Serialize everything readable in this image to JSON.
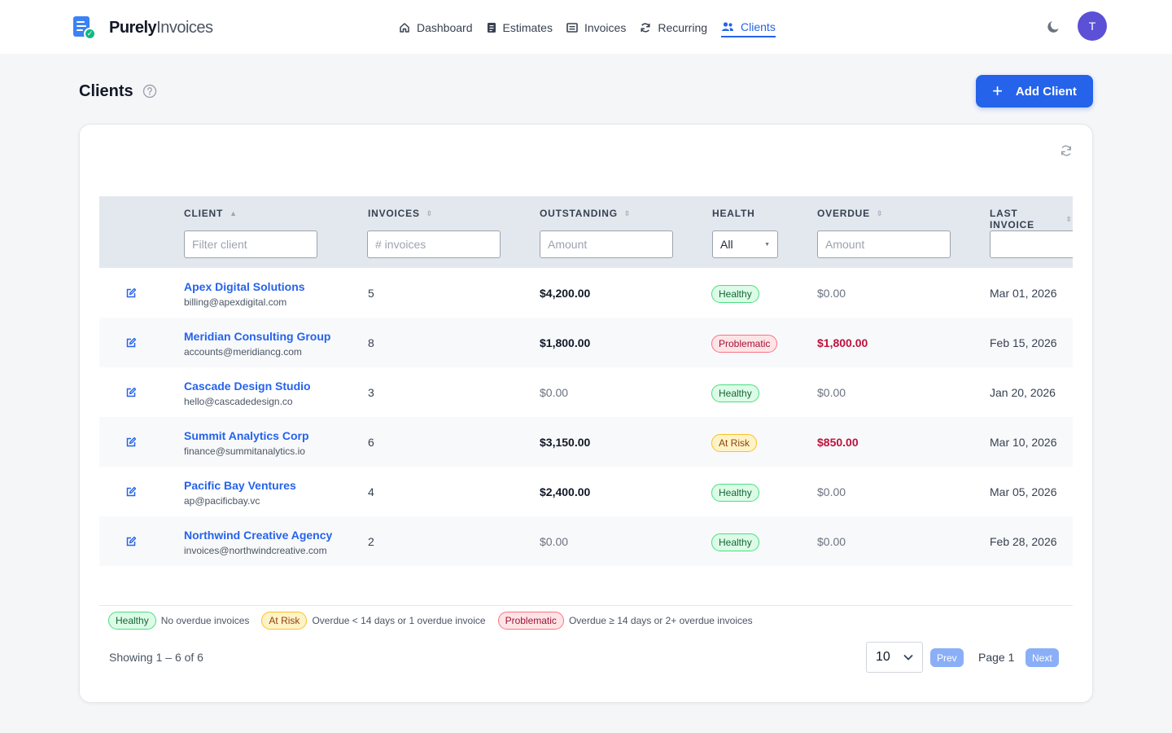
{
  "brand": {
    "name_bold": "Purely",
    "name_light": "Invoices"
  },
  "nav": {
    "items": [
      {
        "label": "Dashboard",
        "icon": "home-icon",
        "active": false
      },
      {
        "label": "Estimates",
        "icon": "clipboard-icon",
        "active": false
      },
      {
        "label": "Invoices",
        "icon": "invoice-icon",
        "active": false
      },
      {
        "label": "Recurring",
        "icon": "refresh-icon",
        "active": false
      },
      {
        "label": "Clients",
        "icon": "users-icon",
        "active": true
      }
    ]
  },
  "user": {
    "initial": "T"
  },
  "page": {
    "title": "Clients",
    "add_label": "Add Client"
  },
  "table": {
    "columns": [
      {
        "label": "CLIENT",
        "sort": "asc"
      },
      {
        "label": "INVOICES",
        "sort": "none"
      },
      {
        "label": "OUTSTANDING",
        "sort": "none"
      },
      {
        "label": "HEALTH",
        "sort": null
      },
      {
        "label": "OVERDUE",
        "sort": "none"
      },
      {
        "label": "LAST INVOICE",
        "sort": "none"
      }
    ],
    "filters": {
      "client_placeholder": "Filter client",
      "invoices_placeholder": "# invoices",
      "outstanding_placeholder": "Amount",
      "health_value": "All",
      "overdue_placeholder": "Amount",
      "last_placeholder": ""
    },
    "rows": [
      {
        "name": "Apex Digital Solutions",
        "email": "billing@apexdigital.com",
        "invoices": "5",
        "outstanding": "$4,200.00",
        "health": "Healthy",
        "overdue": "$0.00",
        "last": "Mar 01, 2026"
      },
      {
        "name": "Meridian Consulting Group",
        "email": "accounts@meridiancg.com",
        "invoices": "8",
        "outstanding": "$1,800.00",
        "health": "Problematic",
        "overdue": "$1,800.00",
        "last": "Feb 15, 2026"
      },
      {
        "name": "Cascade Design Studio",
        "email": "hello@cascadedesign.co",
        "invoices": "3",
        "outstanding": "$0.00",
        "health": "Healthy",
        "overdue": "$0.00",
        "last": "Jan 20, 2026"
      },
      {
        "name": "Summit Analytics Corp",
        "email": "finance@summitanalytics.io",
        "invoices": "6",
        "outstanding": "$3,150.00",
        "health": "At Risk",
        "overdue": "$850.00",
        "last": "Mar 10, 2026"
      },
      {
        "name": "Pacific Bay Ventures",
        "email": "ap@pacificbay.vc",
        "invoices": "4",
        "outstanding": "$2,400.00",
        "health": "Healthy",
        "overdue": "$0.00",
        "last": "Mar 05, 2026"
      },
      {
        "name": "Northwind Creative Agency",
        "email": "invoices@northwindcreative.com",
        "invoices": "2",
        "outstanding": "$0.00",
        "health": "Healthy",
        "overdue": "$0.00",
        "last": "Feb 28, 2026"
      }
    ]
  },
  "legend": [
    {
      "badge": "Healthy",
      "text": "No overdue invoices"
    },
    {
      "badge": "At Risk",
      "text": "Overdue < 14 days or 1 overdue invoice"
    },
    {
      "badge": "Problematic",
      "text": "Overdue ≥ 14 days or 2+ overdue invoices"
    }
  ],
  "pagination": {
    "showing": "Showing 1 – 6 of 6",
    "per_page": "10",
    "prev": "Prev",
    "page": "Page 1",
    "next": "Next"
  },
  "colors": {
    "accent": "#2563eb",
    "avatar": "#5b50d6",
    "danger": "#be123c"
  }
}
